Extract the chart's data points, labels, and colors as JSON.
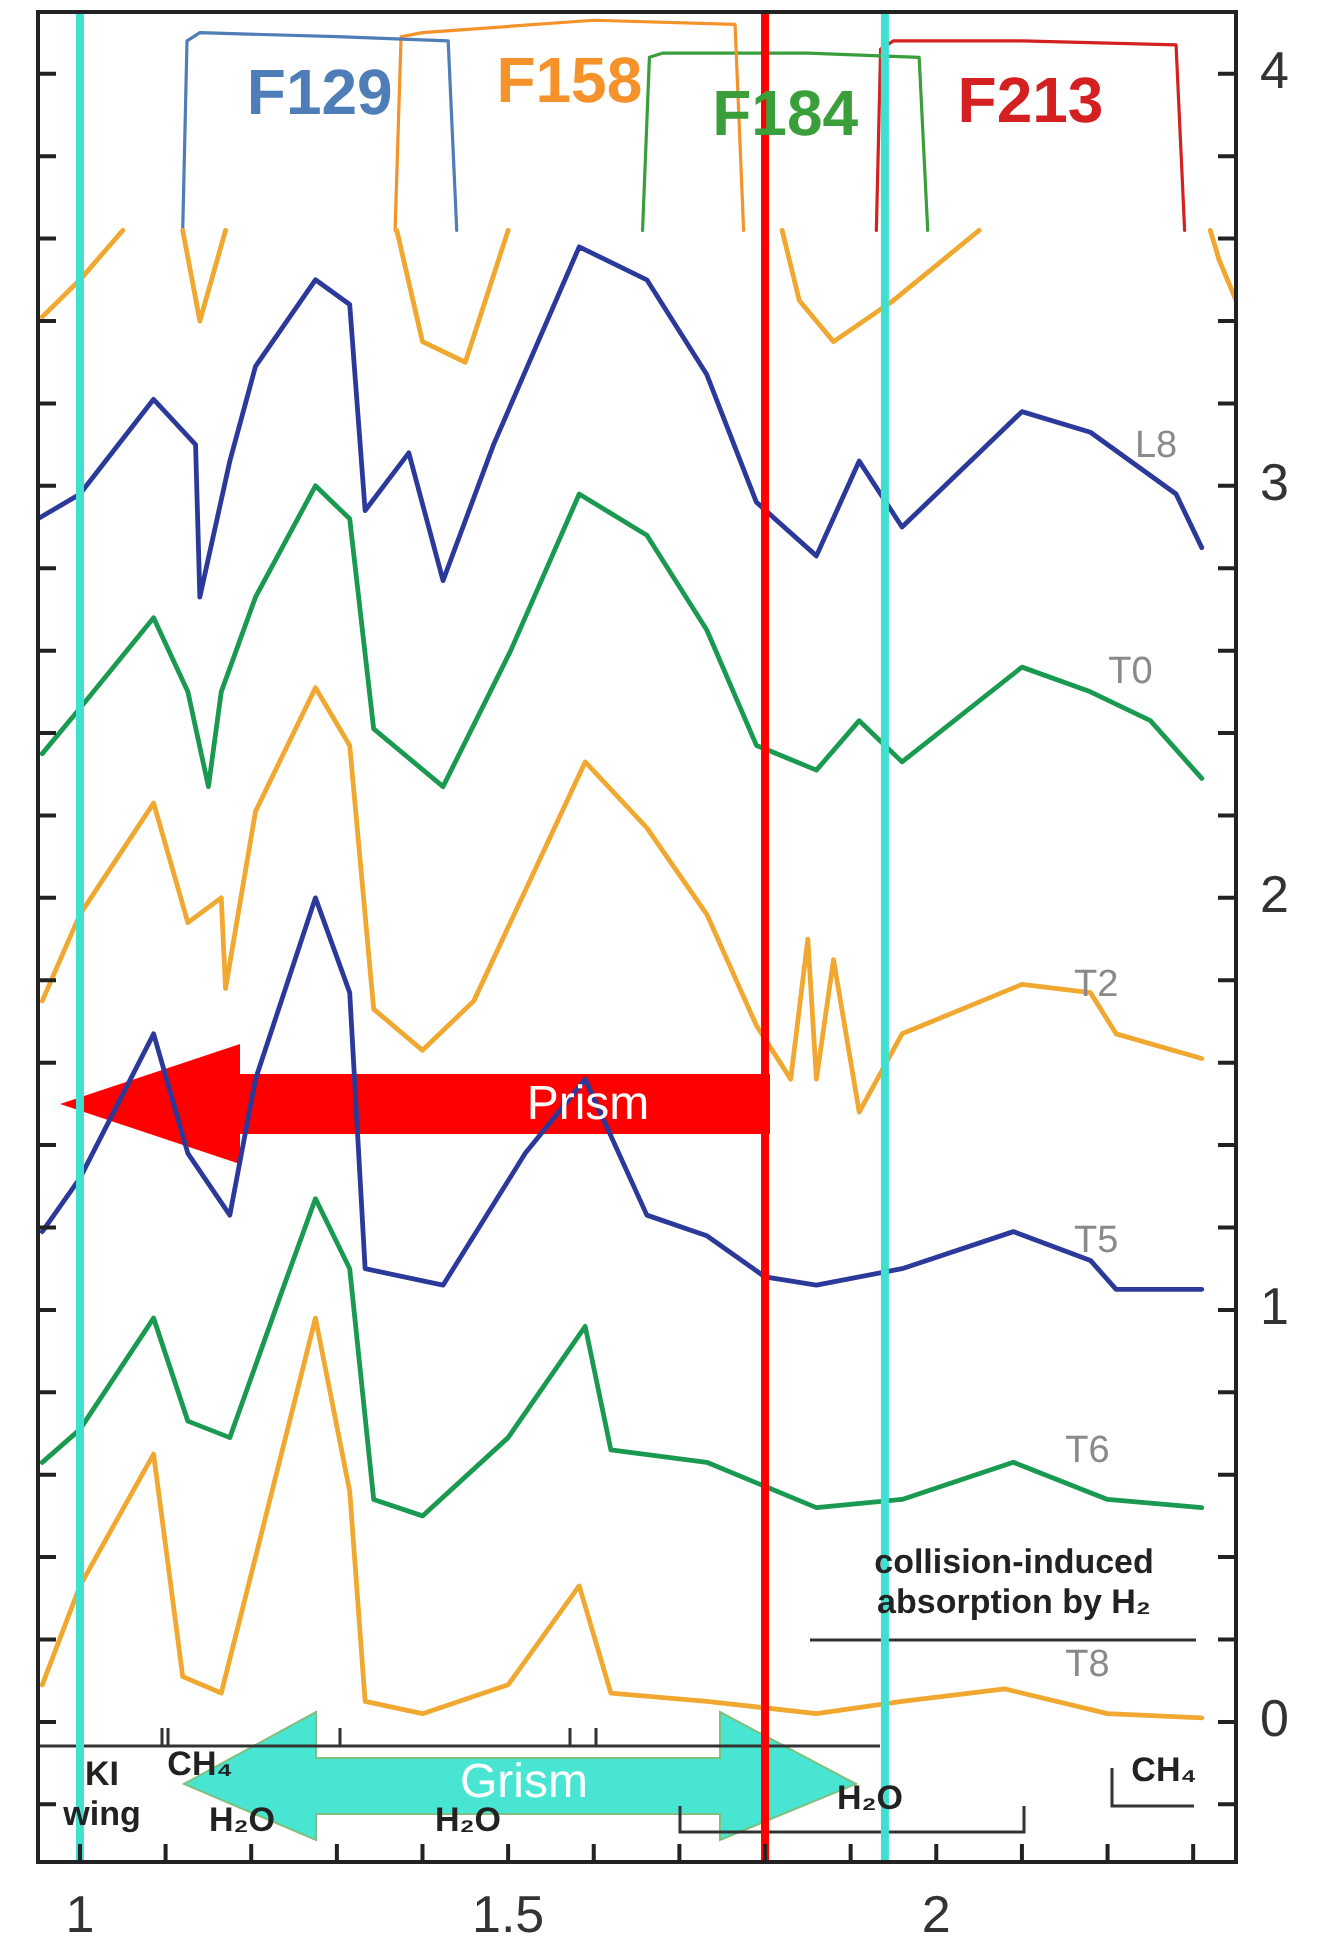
{
  "chart_data": {
    "type": "line",
    "xlim": [
      0.951,
      2.35
    ],
    "ylim": [
      -0.34,
      4.15
    ],
    "xticks": [
      1,
      {
        "value": 1.1,
        "label": null
      },
      {
        "value": 1.2,
        "label": null
      },
      {
        "value": 1.3,
        "label": null
      },
      {
        "value": 1.4,
        "label": null
      },
      1.5,
      {
        "value": 1.6,
        "label": null
      },
      {
        "value": 1.7,
        "label": null
      },
      {
        "value": 1.8,
        "label": null
      },
      {
        "value": 1.9,
        "label": null
      },
      2,
      {
        "value": 2.1,
        "label": null
      },
      {
        "value": 2.2,
        "label": null
      },
      {
        "value": 2.3,
        "label": null
      }
    ],
    "yticks": [
      {
        "value": -0.2,
        "label": null
      },
      0,
      {
        "value": 0.2,
        "label": null
      },
      {
        "value": 0.4,
        "label": null
      },
      {
        "value": 0.6,
        "label": null
      },
      {
        "value": 0.8,
        "label": null
      },
      1,
      {
        "value": 1.2,
        "label": null
      },
      {
        "value": 1.4,
        "label": null
      },
      {
        "value": 1.6,
        "label": null
      },
      {
        "value": 1.8,
        "label": null
      },
      2,
      {
        "value": 2.2,
        "label": null
      },
      {
        "value": 2.4,
        "label": null
      },
      {
        "value": 2.6,
        "label": null
      },
      {
        "value": 2.8,
        "label": null
      },
      3,
      {
        "value": 3.2,
        "label": null
      },
      {
        "value": 3.4,
        "label": null
      },
      {
        "value": 3.6,
        "label": null
      },
      {
        "value": 3.8,
        "label": null
      },
      4
    ],
    "grid": false,
    "legend": false,
    "marker": "none",
    "line_style": "solid",
    "series": [
      {
        "color": "#f0a830",
        "x": [
          0.956,
          1.0,
          1.05,
          1.1,
          1.12,
          1.14,
          1.17,
          1.2,
          1.37,
          1.4,
          1.45,
          1.5,
          1.6,
          1.82,
          1.84,
          1.88,
          1.95,
          2.05,
          2.1,
          2.32,
          2.33,
          2.35
        ],
        "values": [
          3.41,
          3.5,
          3.62,
          null,
          3.62,
          3.4,
          3.62,
          null,
          3.62,
          3.35,
          3.3,
          3.62,
          null,
          3.62,
          3.45,
          3.35,
          3.45,
          3.62,
          null,
          3.62,
          3.55,
          3.45
        ]
      },
      {
        "name": "L8",
        "color": "#2b3a9a",
        "x": [
          0.951,
          1.0,
          1.086,
          1.135,
          1.14,
          1.175,
          1.205,
          1.275,
          1.315,
          1.333,
          1.384,
          1.424,
          1.483,
          1.583,
          1.662,
          1.732,
          1.79,
          1.86,
          1.91,
          1.96,
          2.1,
          2.18,
          2.28,
          2.31
        ],
        "values": [
          2.92,
          2.98,
          3.21,
          3.1,
          2.73,
          3.06,
          3.29,
          3.5,
          3.44,
          2.94,
          3.08,
          2.77,
          3.1,
          3.58,
          3.5,
          3.27,
          2.96,
          2.83,
          3.06,
          2.9,
          3.18,
          3.13,
          2.98,
          2.85
        ]
      },
      {
        "name": "T0",
        "color": "#1a9a50",
        "x": [
          0.956,
          1.0,
          1.086,
          1.126,
          1.15,
          1.165,
          1.205,
          1.275,
          1.315,
          1.343,
          1.424,
          1.503,
          1.583,
          1.662,
          1.732,
          1.79,
          1.86,
          1.91,
          1.96,
          2.1,
          2.18,
          2.25,
          2.31
        ],
        "values": [
          2.35,
          2.46,
          2.68,
          2.5,
          2.27,
          2.5,
          2.73,
          3.0,
          2.92,
          2.41,
          2.27,
          2.6,
          2.98,
          2.88,
          2.65,
          2.37,
          2.31,
          2.43,
          2.33,
          2.56,
          2.5,
          2.43,
          2.29
        ]
      },
      {
        "name": "T2",
        "color": "#f0a830",
        "x": [
          0.956,
          1.0,
          1.086,
          1.126,
          1.165,
          1.17,
          1.205,
          1.275,
          1.315,
          1.343,
          1.4,
          1.46,
          1.59,
          1.662,
          1.732,
          1.79,
          1.83,
          1.85,
          1.86,
          1.88,
          1.91,
          1.96,
          2.1,
          2.18,
          2.21,
          2.31
        ],
        "values": [
          1.75,
          1.96,
          2.23,
          1.94,
          2.0,
          1.78,
          2.21,
          2.51,
          2.37,
          1.73,
          1.63,
          1.75,
          2.33,
          2.17,
          1.96,
          1.69,
          1.56,
          1.9,
          1.56,
          1.85,
          1.48,
          1.67,
          1.79,
          1.77,
          1.67,
          1.61
        ]
      },
      {
        "name": "T5",
        "color": "#2b3a9a",
        "x": [
          0.956,
          1.0,
          1.086,
          1.126,
          1.175,
          1.205,
          1.275,
          1.315,
          1.333,
          1.424,
          1.52,
          1.59,
          1.662,
          1.732,
          1.8,
          1.86,
          1.96,
          2.09,
          2.18,
          2.21,
          2.31
        ],
        "values": [
          1.19,
          1.32,
          1.67,
          1.38,
          1.23,
          1.56,
          2.0,
          1.77,
          1.1,
          1.06,
          1.38,
          1.56,
          1.23,
          1.18,
          1.08,
          1.06,
          1.1,
          1.19,
          1.12,
          1.05,
          1.05
        ]
      },
      {
        "name": "T6",
        "color": "#1a9a50",
        "x": [
          0.956,
          1.0,
          1.086,
          1.126,
          1.175,
          1.235,
          1.275,
          1.315,
          1.343,
          1.4,
          1.5,
          1.59,
          1.62,
          1.732,
          1.86,
          1.96,
          2.09,
          2.2,
          2.31
        ],
        "values": [
          0.63,
          0.71,
          0.98,
          0.73,
          0.69,
          1.04,
          1.27,
          1.1,
          0.54,
          0.5,
          0.69,
          0.96,
          0.66,
          0.63,
          0.52,
          0.54,
          0.63,
          0.54,
          0.52
        ]
      },
      {
        "name": "T8",
        "color": "#f0a830",
        "x": [
          0.956,
          1.0,
          1.086,
          1.12,
          1.165,
          1.205,
          1.275,
          1.315,
          1.333,
          1.4,
          1.5,
          1.583,
          1.62,
          1.732,
          1.86,
          1.96,
          2.08,
          2.2,
          2.31
        ],
        "values": [
          0.09,
          0.33,
          0.65,
          0.11,
          0.07,
          0.4,
          0.98,
          0.56,
          0.05,
          0.02,
          0.09,
          0.33,
          0.07,
          0.05,
          0.02,
          0.05,
          0.08,
          0.02,
          0.01
        ]
      },
      {
        "name": "F129",
        "color": "#4f7db8",
        "x": [
          1.12,
          1.125,
          1.14,
          1.3,
          1.43,
          1.44
        ],
        "values": [
          3.62,
          4.08,
          4.1,
          4.09,
          4.08,
          3.62
        ]
      },
      {
        "name": "F158",
        "color": "#f5922a",
        "x": [
          1.368,
          1.375,
          1.4,
          1.6,
          1.765,
          1.775
        ],
        "values": [
          3.62,
          4.09,
          4.1,
          4.13,
          4.12,
          3.62
        ]
      },
      {
        "name": "F184",
        "color": "#3a9e3a",
        "x": [
          1.657,
          1.665,
          1.68,
          1.85,
          1.98,
          1.99
        ],
        "values": [
          3.62,
          4.04,
          4.05,
          4.05,
          4.04,
          3.62
        ]
      },
      {
        "name": "F213",
        "color": "#d42020",
        "x": [
          1.93,
          1.935,
          1.95,
          2.1,
          2.28,
          2.29
        ],
        "values": [
          3.62,
          4.06,
          4.08,
          4.08,
          4.07,
          3.62
        ]
      }
    ],
    "ref_lines": [
      {
        "axis": "x",
        "value": 1.0,
        "color": "#40e0d0"
      },
      {
        "axis": "x",
        "value": 1.94,
        "color": "#40e0d0"
      },
      {
        "axis": "x",
        "value": 1.8,
        "color": "#ff0000"
      }
    ],
    "annotations": [
      "Prism",
      "Grism",
      "collision-induced\nabsorption by H₂",
      "KI\nwing",
      "CH₄",
      "H₂O",
      "H₂O",
      "H₂O",
      "CH₄"
    ]
  }
}
